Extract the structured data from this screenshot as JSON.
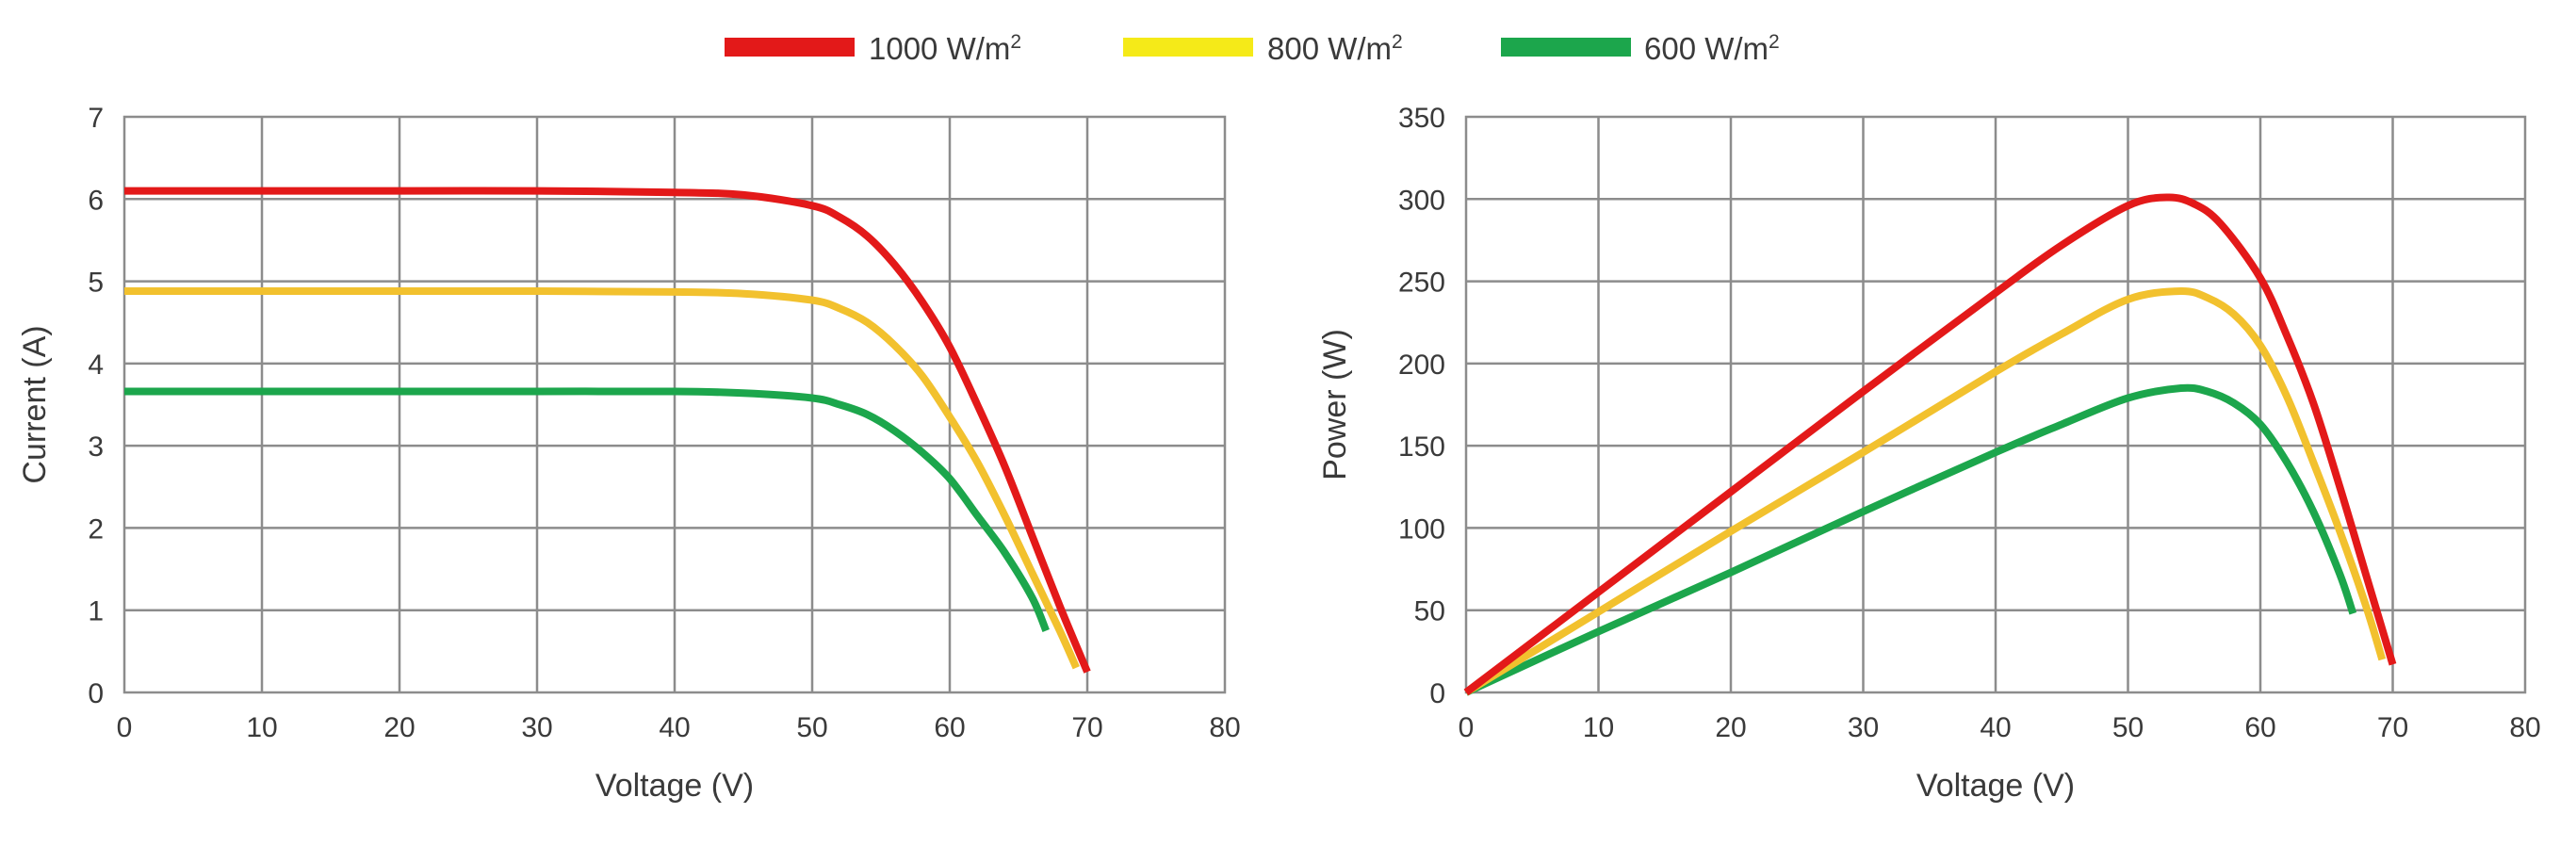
{
  "legend": [
    {
      "name": "1000 W/m",
      "sup": "2",
      "color": "#e31919"
    },
    {
      "name": "800 W/m",
      "sup": "2",
      "color": "#f5ea18"
    },
    {
      "name": "600 W/m",
      "sup": "2",
      "color": "#1ca64c"
    }
  ],
  "chart_data": [
    {
      "type": "line",
      "title": "",
      "xlabel": "Voltage (V)",
      "ylabel": "Current (A)",
      "xlim": [
        0,
        80
      ],
      "ylim": [
        0,
        7
      ],
      "xticks": [
        0,
        10,
        20,
        30,
        40,
        50,
        60,
        70,
        80
      ],
      "yticks": [
        0,
        1,
        2,
        3,
        4,
        5,
        6,
        7
      ],
      "grid": true,
      "series": [
        {
          "name": "1000 W/m2",
          "color": "#e31919",
          "x": [
            0,
            10,
            20,
            30,
            40,
            45,
            50,
            52,
            54,
            56,
            58,
            60,
            62,
            64,
            66,
            68,
            70
          ],
          "y": [
            6.1,
            6.1,
            6.1,
            6.1,
            6.08,
            6.05,
            5.92,
            5.78,
            5.55,
            5.2,
            4.75,
            4.2,
            3.5,
            2.75,
            1.9,
            1.05,
            0.25
          ]
        },
        {
          "name": "800 W/m2",
          "color": "#f2c12e",
          "x": [
            0,
            10,
            20,
            30,
            40,
            45,
            50,
            52,
            54,
            56,
            58,
            60,
            62,
            64,
            66,
            68,
            69.2
          ],
          "y": [
            4.88,
            4.88,
            4.88,
            4.88,
            4.87,
            4.85,
            4.77,
            4.67,
            4.5,
            4.22,
            3.85,
            3.35,
            2.8,
            2.15,
            1.45,
            0.75,
            0.3
          ]
        },
        {
          "name": "600 W/m2",
          "color": "#1ca64c",
          "x": [
            0,
            10,
            20,
            30,
            40,
            45,
            50,
            52,
            54,
            56,
            58,
            60,
            62,
            64,
            66,
            67
          ],
          "y": [
            3.66,
            3.66,
            3.66,
            3.66,
            3.66,
            3.64,
            3.58,
            3.5,
            3.38,
            3.18,
            2.92,
            2.6,
            2.15,
            1.7,
            1.15,
            0.75
          ]
        }
      ]
    },
    {
      "type": "line",
      "title": "",
      "xlabel": "Voltage (V)",
      "ylabel": "Power (W)",
      "xlim": [
        0,
        80
      ],
      "ylim": [
        0,
        350
      ],
      "xticks": [
        0,
        10,
        20,
        30,
        40,
        50,
        60,
        70,
        80
      ],
      "yticks": [
        0,
        50,
        100,
        150,
        200,
        250,
        300,
        350
      ],
      "grid": true,
      "series": [
        {
          "name": "1000 W/m2",
          "color": "#e31919",
          "x": [
            0,
            10,
            20,
            30,
            40,
            45,
            50,
            53,
            55,
            57,
            60,
            62,
            64,
            66,
            68,
            70
          ],
          "y": [
            0,
            61,
            122,
            183,
            243,
            272,
            296,
            301,
            297,
            285,
            252,
            217,
            176,
            125,
            71,
            17
          ]
        },
        {
          "name": "800 W/m2",
          "color": "#f2c12e",
          "x": [
            0,
            10,
            20,
            30,
            40,
            45,
            50,
            54,
            56,
            58,
            60,
            62,
            64,
            66,
            68,
            69.2
          ],
          "y": [
            0,
            49,
            98,
            146,
            195,
            218,
            239,
            244,
            240,
            230,
            211,
            180,
            140,
            98,
            52,
            20
          ]
        },
        {
          "name": "600 W/m2",
          "color": "#1ca64c",
          "x": [
            0,
            10,
            20,
            30,
            40,
            45,
            50,
            54,
            56,
            58,
            60,
            62,
            64,
            66,
            67
          ],
          "y": [
            0,
            37,
            73,
            110,
            146,
            163,
            179,
            185,
            183,
            176,
            163,
            140,
            110,
            72,
            48
          ]
        }
      ]
    }
  ]
}
